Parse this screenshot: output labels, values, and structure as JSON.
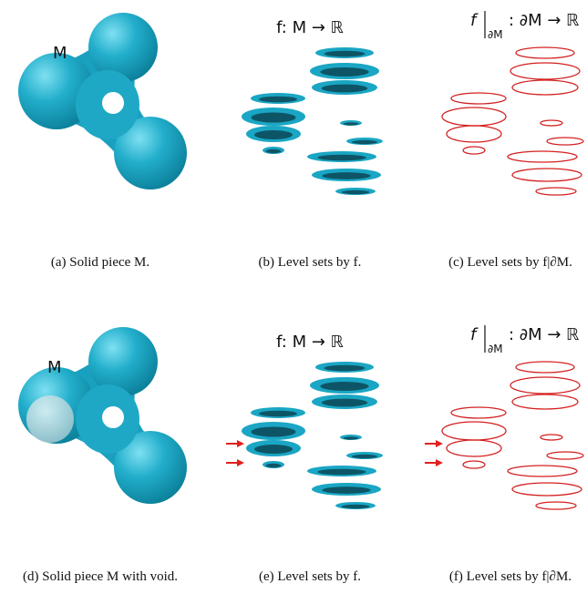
{
  "panels": [
    {
      "label": "M",
      "caption": "(a) Solid piece M."
    },
    {
      "label": "f: M → ℝ",
      "caption": "(b) Level sets by f."
    },
    {
      "label": "f",
      "label_subscript": "∂M",
      "label_rest": ": ∂M → ℝ",
      "caption": "(c) Level sets by f|∂M."
    },
    {
      "label": "M",
      "caption": "(d) Solid piece M with void."
    },
    {
      "label": "f: M → ℝ",
      "caption": "(e) Level sets by f."
    },
    {
      "label": "f",
      "label_subscript": "∂M",
      "label_rest": ": ∂M → ℝ",
      "caption": "(f) Level sets by f|∂M."
    }
  ]
}
